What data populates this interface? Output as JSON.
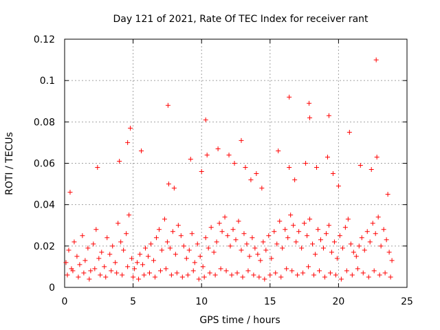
{
  "chart_data": {
    "type": "scatter",
    "title": "Day 121 of 2021, Rate Of TEC Index for receiver rant",
    "xlabel": "GPS time / hours",
    "ylabel": "ROTI / TECUs",
    "xlim": [
      0,
      25
    ],
    "ylim": [
      0,
      0.12
    ],
    "xticks": [
      0,
      5,
      10,
      15,
      20,
      25
    ],
    "yticks": [
      0,
      0.02,
      0.04,
      0.06,
      0.08,
      0.1,
      0.12
    ],
    "xtick_labels": [
      "0",
      "5",
      "10",
      "15",
      "20",
      "25"
    ],
    "ytick_labels": [
      "0",
      "0.02",
      "0.04",
      "0.06",
      "0.08",
      "0.1",
      "0.12"
    ],
    "grid": true,
    "marker": "+",
    "color": "#ff0000",
    "series": [
      {
        "x": [
          0.1,
          0.3,
          0.5,
          0.7,
          0.9,
          1.1,
          1.3,
          1.5,
          1.7,
          1.9,
          2.1,
          2.3,
          2.5,
          2.7,
          2.9,
          3.1,
          3.3,
          3.5,
          3.7,
          3.9,
          4.1,
          4.3,
          4.5,
          4.7,
          4.9,
          5.1,
          5.3,
          5.5,
          5.7,
          5.9,
          6.1,
          6.3,
          6.5,
          6.7,
          6.9,
          7.1,
          7.3,
          7.5,
          7.7,
          7.9,
          8.1,
          8.3,
          8.5,
          8.7,
          8.9,
          9.1,
          9.3,
          9.5,
          9.7,
          9.9,
          10.1,
          10.3,
          10.5,
          10.7,
          10.9,
          11.1,
          11.3,
          11.5,
          11.7,
          11.9,
          12.1,
          12.3,
          12.5,
          12.7,
          12.9,
          13.1,
          13.3,
          13.5,
          13.7,
          13.9,
          14.1,
          14.3,
          14.5,
          14.7,
          14.9,
          15.1,
          15.3,
          15.5,
          15.7,
          15.9,
          16.1,
          16.3,
          16.5,
          16.7,
          16.9,
          17.1,
          17.3,
          17.5,
          17.7,
          17.9,
          18.1,
          18.3,
          18.5,
          18.7,
          18.9,
          19.1,
          19.3,
          19.5,
          19.7,
          19.9,
          20.1,
          20.3,
          20.5,
          20.7,
          20.9,
          21.1,
          21.3,
          21.5,
          21.7,
          21.9,
          22.1,
          22.3,
          22.5,
          22.7,
          22.9,
          23.1,
          23.3,
          23.5,
          23.7,
          23.9,
          0.2,
          0.6,
          1.0,
          1.4,
          1.8,
          2.2,
          2.6,
          3.0,
          3.4,
          3.8,
          4.2,
          4.6,
          5.0,
          5.4,
          5.8,
          6.2,
          6.6,
          7.0,
          7.4,
          7.8,
          8.2,
          8.6,
          9.0,
          9.4,
          9.8,
          10.2,
          10.6,
          11.0,
          11.4,
          11.8,
          12.2,
          12.6,
          13.0,
          13.4,
          13.8,
          14.2,
          14.6,
          15.0,
          15.4,
          15.8,
          16.2,
          16.6,
          17.0,
          17.4,
          17.8,
          18.2,
          18.6,
          19.0,
          19.4,
          19.8,
          20.2,
          20.6,
          21.0,
          21.4,
          21.8,
          22.2,
          22.6,
          23.0,
          23.4,
          23.8,
          0.4,
          2.4,
          4.0,
          4.8,
          5.6,
          7.6,
          8.0,
          9.2,
          10.0,
          10.4,
          11.2,
          12.0,
          12.4,
          13.2,
          13.6,
          14.0,
          14.4,
          15.6,
          16.4,
          16.8,
          17.6,
          17.9,
          18.4,
          19.2,
          19.6,
          20.0,
          20.8,
          21.6,
          22.4,
          22.8,
          23.6,
          7.55,
          10.3,
          16.4,
          17.85,
          19.3,
          22.75,
          4.6,
          12.9
        ],
        "y": [
          0.012,
          0.018,
          0.009,
          0.022,
          0.015,
          0.011,
          0.025,
          0.013,
          0.019,
          0.008,
          0.021,
          0.028,
          0.014,
          0.017,
          0.01,
          0.024,
          0.016,
          0.02,
          0.012,
          0.031,
          0.022,
          0.018,
          0.026,
          0.035,
          0.014,
          0.009,
          0.012,
          0.016,
          0.011,
          0.019,
          0.015,
          0.021,
          0.013,
          0.024,
          0.028,
          0.018,
          0.033,
          0.022,
          0.019,
          0.027,
          0.016,
          0.03,
          0.025,
          0.02,
          0.014,
          0.018,
          0.026,
          0.012,
          0.021,
          0.015,
          0.01,
          0.024,
          0.019,
          0.029,
          0.017,
          0.022,
          0.031,
          0.027,
          0.034,
          0.025,
          0.02,
          0.028,
          0.023,
          0.032,
          0.018,
          0.026,
          0.021,
          0.015,
          0.024,
          0.019,
          0.016,
          0.013,
          0.022,
          0.018,
          0.025,
          0.014,
          0.027,
          0.021,
          0.032,
          0.019,
          0.028,
          0.024,
          0.035,
          0.03,
          0.022,
          0.027,
          0.019,
          0.031,
          0.025,
          0.033,
          0.021,
          0.016,
          0.028,
          0.023,
          0.019,
          0.026,
          0.03,
          0.017,
          0.022,
          0.014,
          0.025,
          0.019,
          0.029,
          0.033,
          0.021,
          0.017,
          0.015,
          0.02,
          0.024,
          0.018,
          0.027,
          0.022,
          0.031,
          0.026,
          0.034,
          0.02,
          0.028,
          0.023,
          0.017,
          0.013,
          0.006,
          0.008,
          0.005,
          0.007,
          0.004,
          0.009,
          0.006,
          0.005,
          0.008,
          0.007,
          0.006,
          0.01,
          0.005,
          0.004,
          0.006,
          0.007,
          0.005,
          0.008,
          0.009,
          0.006,
          0.007,
          0.005,
          0.006,
          0.008,
          0.004,
          0.005,
          0.007,
          0.006,
          0.009,
          0.008,
          0.006,
          0.007,
          0.005,
          0.008,
          0.006,
          0.005,
          0.004,
          0.006,
          0.007,
          0.005,
          0.009,
          0.008,
          0.006,
          0.007,
          0.01,
          0.006,
          0.008,
          0.005,
          0.007,
          0.006,
          0.004,
          0.008,
          0.006,
          0.009,
          0.007,
          0.005,
          0.008,
          0.006,
          0.007,
          0.005,
          0.046,
          0.058,
          0.061,
          0.077,
          0.066,
          0.05,
          0.048,
          0.062,
          0.056,
          0.064,
          0.067,
          0.064,
          0.06,
          0.058,
          0.052,
          0.055,
          0.048,
          0.066,
          0.058,
          0.052,
          0.06,
          0.082,
          0.058,
          0.063,
          0.055,
          0.049,
          0.075,
          0.059,
          0.057,
          0.063,
          0.045,
          0.088,
          0.081,
          0.092,
          0.089,
          0.083,
          0.11,
          0.07,
          0.071
        ]
      }
    ]
  }
}
